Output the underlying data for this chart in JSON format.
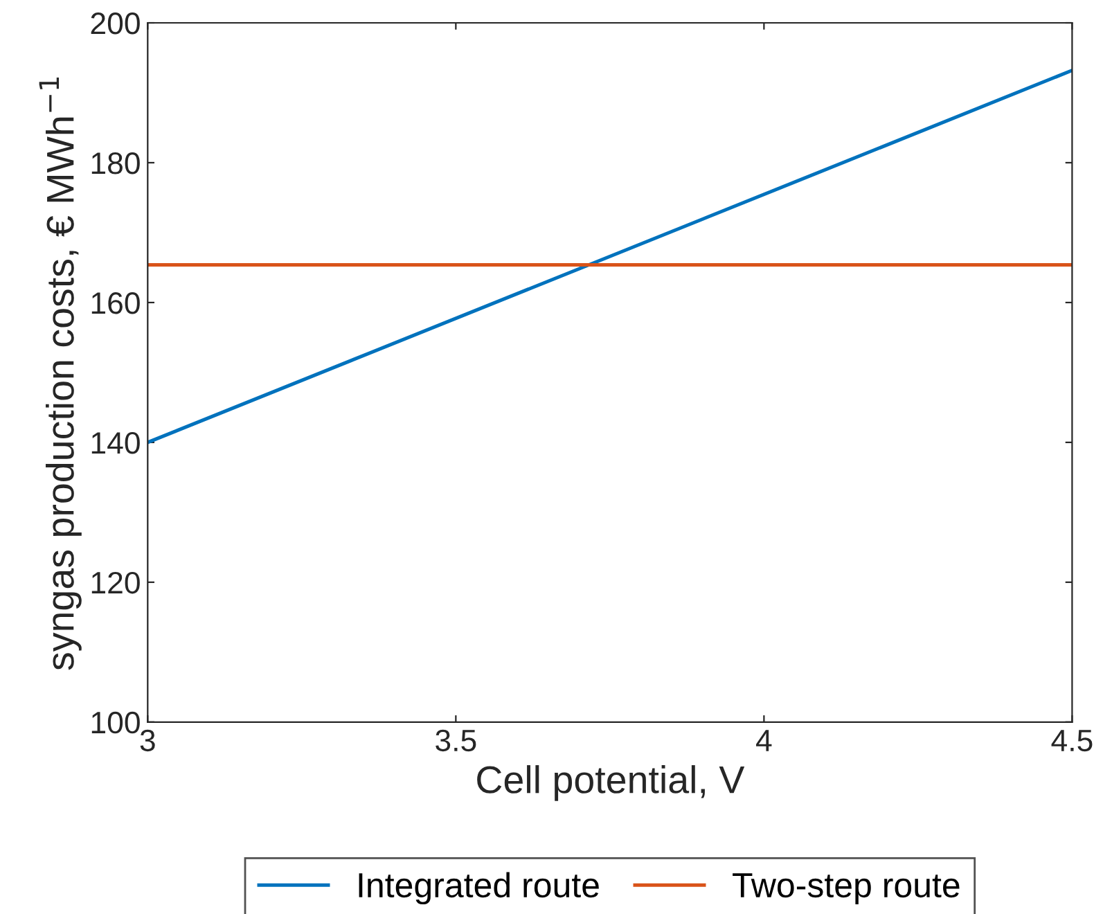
{
  "chart_data": {
    "type": "line",
    "xlabel": "Cell potential, V",
    "ylabel": "syngas production costs, € MWh$^{−1}$",
    "x": [
      3,
      4.5
    ],
    "series": [
      {
        "name": "Integrated route",
        "color": "#0072bd",
        "values": [
          140,
          193.2
        ]
      },
      {
        "name": "Two-step route",
        "color": "#d95319",
        "values": [
          165.4,
          165.4
        ]
      }
    ],
    "xlim": [
      3,
      4.5
    ],
    "xticks": [
      3,
      3.5,
      4,
      4.5
    ],
    "ylim": [
      100,
      200
    ],
    "yticks": [
      100,
      120,
      140,
      160,
      180,
      200
    ],
    "grid": false,
    "legend": "bottom",
    "marker": "none",
    "line_style": "solid"
  }
}
